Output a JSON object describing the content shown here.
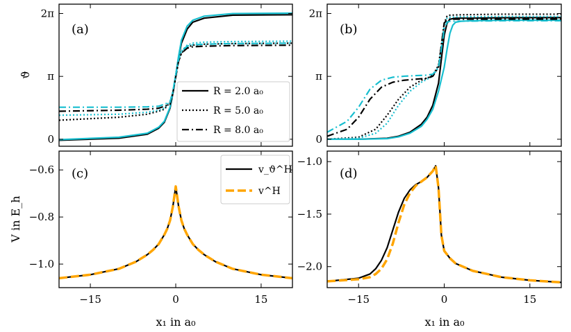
{
  "chart_data": [
    {
      "id": "a",
      "panel_label": "(a)",
      "type": "line",
      "ylabel": "ϑ",
      "xlim": [
        -20.5,
        20.5
      ],
      "ylim": [
        -0.35,
        6.75
      ],
      "xticks": [
        -15,
        0,
        15
      ],
      "xtick_labels": [
        "",
        "",
        ""
      ],
      "yticks": [
        0,
        3.14159,
        6.28318
      ],
      "ytick_labels": [
        "0",
        "π",
        "2π"
      ],
      "legend": {
        "placement": "lower-right",
        "entries": [
          {
            "label": "R = 2.0 a₀",
            "style": "solid"
          },
          {
            "label": "R = 5.0 a₀",
            "style": "dotted"
          },
          {
            "label": "R = 8.0 a₀",
            "style": "dashdot"
          }
        ]
      },
      "series": [
        {
          "color": "#000000",
          "style": "solid",
          "width": 2.2,
          "x": [
            -20.5,
            -10,
            -5,
            -3,
            -2,
            -1,
            -0.5,
            0,
            0.5,
            1,
            2,
            3,
            5,
            10,
            20.5
          ],
          "y": [
            -0.05,
            0.05,
            0.25,
            0.55,
            0.85,
            1.55,
            2.3,
            3.2,
            4.1,
            4.8,
            5.5,
            5.85,
            6.05,
            6.2,
            6.22
          ]
        },
        {
          "color": "#17becf",
          "style": "solid",
          "width": 2.2,
          "x": [
            -20.5,
            -10,
            -5,
            -3,
            -2,
            -1,
            -0.5,
            0,
            0.5,
            1,
            2,
            3,
            5,
            10,
            20.5
          ],
          "y": [
            -0.02,
            0.1,
            0.3,
            0.6,
            0.9,
            1.6,
            2.35,
            3.2,
            4.15,
            4.95,
            5.65,
            5.95,
            6.15,
            6.28,
            6.3
          ]
        },
        {
          "color": "#000000",
          "style": "dotted",
          "width": 2.2,
          "x": [
            -20.5,
            -10,
            -5,
            -3,
            -2,
            -1,
            -0.5,
            0,
            0.5,
            1,
            2,
            3,
            5,
            10,
            20.5
          ],
          "y": [
            0.95,
            1.1,
            1.25,
            1.4,
            1.5,
            1.85,
            2.3,
            3.1,
            3.9,
            4.3,
            4.6,
            4.7,
            4.75,
            4.78,
            4.8
          ]
        },
        {
          "color": "#17becf",
          "style": "dotted",
          "width": 2.2,
          "x": [
            -20.5,
            -10,
            -5,
            -3,
            -2,
            -1,
            -0.5,
            0,
            0.5,
            1,
            2,
            3,
            5,
            10,
            20.5
          ],
          "y": [
            1.2,
            1.25,
            1.35,
            1.45,
            1.55,
            1.9,
            2.35,
            3.2,
            4.0,
            4.4,
            4.7,
            4.8,
            4.85,
            4.88,
            4.9
          ]
        },
        {
          "color": "#000000",
          "style": "dashdot",
          "width": 2.2,
          "x": [
            -20.5,
            -10,
            -5,
            -3,
            -1,
            -0.5,
            0,
            0.5,
            1,
            2,
            3,
            5,
            10,
            20.5
          ],
          "y": [
            1.4,
            1.45,
            1.5,
            1.55,
            1.75,
            2.3,
            3.1,
            3.9,
            4.3,
            4.55,
            4.62,
            4.65,
            4.68,
            4.7
          ]
        },
        {
          "color": "#17becf",
          "style": "dashdot",
          "width": 2.2,
          "x": [
            -20.5,
            -10,
            -5,
            -3,
            -1,
            -0.5,
            0,
            0.5,
            1,
            2,
            3,
            5,
            10,
            20.5
          ],
          "y": [
            1.6,
            1.6,
            1.62,
            1.65,
            1.85,
            2.4,
            3.2,
            4.0,
            4.4,
            4.65,
            4.72,
            4.75,
            4.78,
            4.8
          ]
        }
      ]
    },
    {
      "id": "b",
      "panel_label": "(b)",
      "type": "line",
      "ylabel": "",
      "xlim": [
        -20.5,
        20.5
      ],
      "ylim": [
        -0.35,
        6.75
      ],
      "xticks": [
        -15,
        0,
        15
      ],
      "xtick_labels": [
        "",
        "",
        ""
      ],
      "yticks": [
        0,
        3.14159,
        6.28318
      ],
      "ytick_labels": [
        "0",
        "π",
        "2π"
      ],
      "series": [
        {
          "color": "#000000",
          "style": "solid",
          "width": 2.2,
          "x": [
            -20.5,
            -15,
            -10,
            -8,
            -6,
            -4,
            -3,
            -2,
            -1,
            -0.5,
            0,
            0.5,
            1,
            2,
            3,
            5,
            10,
            20.5
          ],
          "y": [
            0,
            0,
            0.05,
            0.15,
            0.35,
            0.75,
            1.1,
            1.7,
            2.8,
            4.0,
            5.2,
            5.8,
            6.0,
            6.05,
            6.05,
            6.05,
            6.07,
            6.08
          ]
        },
        {
          "color": "#17becf",
          "style": "solid",
          "width": 2.2,
          "x": [
            -20.5,
            -15,
            -10,
            -8,
            -6,
            -4,
            -3,
            -2,
            -1,
            0,
            0.5,
            1,
            1.5,
            2,
            3,
            5,
            10,
            20.5
          ],
          "y": [
            0,
            0,
            0.03,
            0.12,
            0.3,
            0.65,
            1.0,
            1.5,
            2.4,
            3.6,
            4.5,
            5.3,
            5.7,
            5.85,
            5.9,
            5.92,
            5.95,
            5.95
          ]
        },
        {
          "color": "#000000",
          "style": "dotted",
          "width": 2.2,
          "x": [
            -20.5,
            -15,
            -12,
            -10,
            -8,
            -6,
            -4,
            -3,
            -2,
            -1,
            -0.5,
            0,
            0.5,
            1,
            3,
            10,
            20.5
          ],
          "y": [
            0,
            0.1,
            0.5,
            1.2,
            2.0,
            2.6,
            2.95,
            3.05,
            3.2,
            3.7,
            4.7,
            5.8,
            6.15,
            6.2,
            6.22,
            6.25,
            6.25
          ]
        },
        {
          "color": "#17becf",
          "style": "dotted",
          "width": 2.2,
          "x": [
            -20.5,
            -15,
            -12,
            -10,
            -8,
            -6,
            -4,
            -3,
            -2,
            -1,
            -0.5,
            0,
            0.5,
            1,
            3,
            10,
            20.5
          ],
          "y": [
            0,
            0.05,
            0.3,
            0.8,
            1.7,
            2.4,
            2.85,
            3.0,
            3.15,
            3.6,
            4.6,
            5.7,
            6.05,
            6.1,
            6.12,
            6.13,
            6.13
          ]
        },
        {
          "color": "#000000",
          "style": "dashdot",
          "width": 2.2,
          "x": [
            -20.5,
            -17,
            -15,
            -13,
            -11,
            -9,
            -7,
            -5,
            -3,
            -2,
            -1,
            -0.5,
            0,
            0.5,
            1,
            3,
            10,
            20.5
          ],
          "y": [
            0.15,
            0.5,
            1.1,
            2.0,
            2.6,
            2.85,
            2.95,
            3.0,
            3.05,
            3.15,
            3.6,
            4.7,
            5.8,
            5.98,
            6.0,
            6.0,
            6.0,
            6.0
          ]
        },
        {
          "color": "#17becf",
          "style": "dashdot",
          "width": 2.2,
          "x": [
            -20.5,
            -17,
            -15,
            -13,
            -11,
            -9,
            -7,
            -5,
            -3,
            -2,
            -1,
            -0.5,
            0,
            0.5,
            1,
            3,
            10,
            20.5
          ],
          "y": [
            0.35,
            0.9,
            1.6,
            2.5,
            2.95,
            3.1,
            3.15,
            3.18,
            3.2,
            3.25,
            3.6,
            4.5,
            5.5,
            5.85,
            5.9,
            5.9,
            5.92,
            5.92
          ]
        }
      ]
    },
    {
      "id": "c",
      "panel_label": "(c)",
      "type": "line",
      "ylabel": "V in E_h",
      "xlabel": "x₁ in a₀",
      "xlim": [
        -20.5,
        20.5
      ],
      "ylim": [
        -1.1,
        -0.52
      ],
      "xticks": [
        -15,
        0,
        15
      ],
      "xtick_labels": [
        "−15",
        "0",
        "15"
      ],
      "yticks": [
        -1.0,
        -0.8,
        -0.6
      ],
      "ytick_labels": [
        "−1.0",
        "−0.8",
        "−0.6"
      ],
      "legend": {
        "placement": "top-right",
        "entries": [
          {
            "label": "v_ϑ^H",
            "style": "solid",
            "color": "#000000"
          },
          {
            "label": "v^H",
            "style": "dashed",
            "color": "#ffa500"
          }
        ]
      },
      "series": [
        {
          "color": "#000000",
          "style": "solid",
          "width": 2.2,
          "x": [
            -20.5,
            -15,
            -10,
            -7,
            -5,
            -4,
            -3,
            -2,
            -1.5,
            -1,
            -0.5,
            0,
            0.5,
            1,
            1.5,
            2,
            3,
            4,
            5,
            7,
            10,
            15,
            20.5
          ],
          "y": [
            -1.06,
            -1.045,
            -1.02,
            -0.99,
            -0.96,
            -0.94,
            -0.915,
            -0.875,
            -0.85,
            -0.815,
            -0.755,
            -0.67,
            -0.755,
            -0.815,
            -0.85,
            -0.875,
            -0.915,
            -0.94,
            -0.96,
            -0.99,
            -1.02,
            -1.045,
            -1.06
          ]
        },
        {
          "color": "#ffa500",
          "style": "dashed",
          "width": 3.5,
          "x": [
            -20.5,
            -15,
            -10,
            -7,
            -5,
            -4,
            -3,
            -2,
            -1.5,
            -1,
            -0.5,
            0,
            0.5,
            1,
            1.5,
            2,
            3,
            4,
            5,
            7,
            10,
            15,
            20.5
          ],
          "y": [
            -1.06,
            -1.045,
            -1.02,
            -0.99,
            -0.96,
            -0.94,
            -0.915,
            -0.875,
            -0.85,
            -0.815,
            -0.755,
            -0.67,
            -0.755,
            -0.815,
            -0.85,
            -0.875,
            -0.915,
            -0.94,
            -0.96,
            -0.99,
            -1.02,
            -1.045,
            -1.06
          ]
        }
      ]
    },
    {
      "id": "d",
      "panel_label": "(d)",
      "type": "line",
      "ylabel": "",
      "xlabel": "x₁ in a₀",
      "xlim": [
        -20.5,
        20.5
      ],
      "ylim": [
        -2.2,
        -0.9
      ],
      "xticks": [
        -15,
        0,
        15
      ],
      "xtick_labels": [
        "−15",
        "0",
        "15"
      ],
      "yticks": [
        -2.0,
        -1.5,
        -1.0
      ],
      "ytick_labels": [
        "−2.0",
        "−1.5",
        "−1.0"
      ],
      "series": [
        {
          "color": "#000000",
          "style": "solid",
          "width": 2.2,
          "x": [
            -20.5,
            -15,
            -13,
            -12,
            -11,
            -10,
            -9,
            -8,
            -7,
            -6,
            -5,
            -4,
            -3,
            -2,
            -1.5,
            -1,
            -0.5,
            0,
            1,
            2,
            5,
            10,
            15,
            20.5
          ],
          "y": [
            -2.14,
            -2.11,
            -2.07,
            -2.02,
            -1.94,
            -1.82,
            -1.65,
            -1.48,
            -1.35,
            -1.27,
            -1.22,
            -1.19,
            -1.15,
            -1.09,
            -1.04,
            -1.25,
            -1.7,
            -1.85,
            -1.92,
            -1.97,
            -2.04,
            -2.1,
            -2.13,
            -2.15
          ]
        },
        {
          "color": "#ffa500",
          "style": "dashed",
          "width": 3.5,
          "x": [
            -20.5,
            -15,
            -13,
            -12,
            -11,
            -10,
            -9,
            -8,
            -7,
            -6,
            -5,
            -4,
            -3,
            -2,
            -1.5,
            -1,
            -0.5,
            0,
            1,
            2,
            5,
            10,
            15,
            20.5
          ],
          "y": [
            -2.14,
            -2.12,
            -2.1,
            -2.07,
            -2.02,
            -1.93,
            -1.78,
            -1.58,
            -1.41,
            -1.3,
            -1.23,
            -1.19,
            -1.15,
            -1.09,
            -1.04,
            -1.25,
            -1.7,
            -1.85,
            -1.92,
            -1.97,
            -2.04,
            -2.1,
            -2.13,
            -2.15
          ]
        }
      ]
    }
  ]
}
